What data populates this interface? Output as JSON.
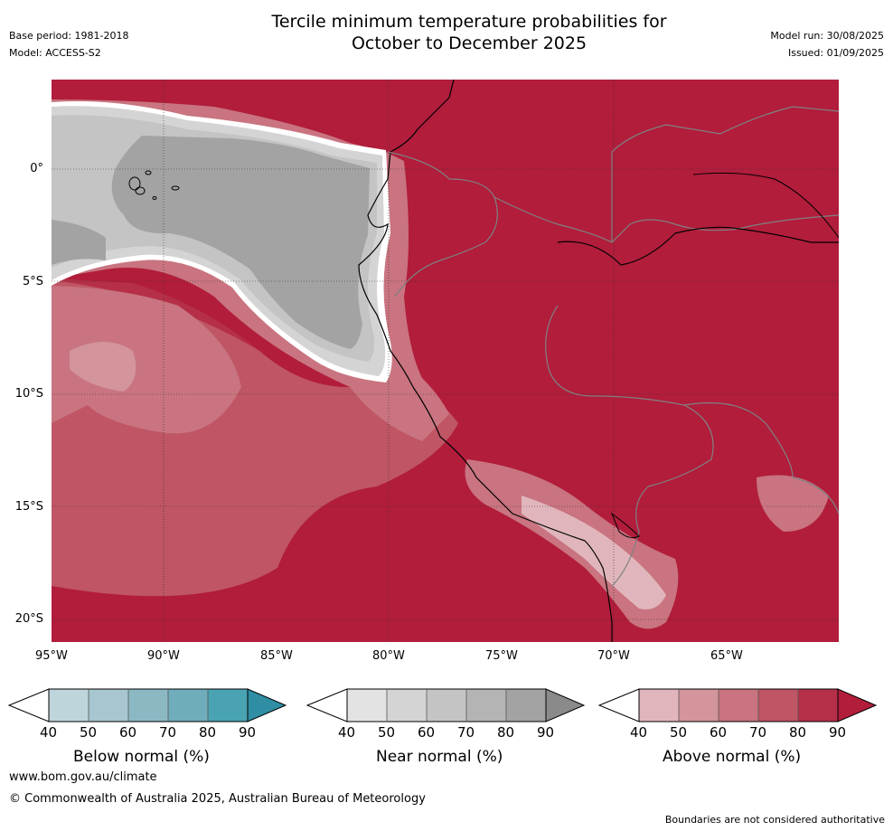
{
  "header": {
    "title_line1": "Tercile minimum temperature probabilities for",
    "title_line2": "October to December 2025",
    "base_period": "Base period: 1981-2018",
    "model": "Model: ACCESS-S2",
    "model_run": "Model run: 30/08/2025",
    "issued": "Issued: 01/09/2025"
  },
  "map": {
    "lat_ticks": [
      "0°",
      "5°S",
      "10°S",
      "15°S",
      "20°S"
    ],
    "lon_ticks": [
      "95°W",
      "90°W",
      "85°W",
      "80°W",
      "75°W",
      "70°W",
      "65°W"
    ],
    "gridlines": true
  },
  "legend": {
    "tick_labels": [
      "40",
      "50",
      "60",
      "70",
      "80",
      "90"
    ],
    "bars": [
      {
        "label": "Below normal (%)",
        "colors": [
          "#bfd5dc",
          "#a7c6cf",
          "#8cb8c4",
          "#6fadba",
          "#4aa3b3",
          "#2f8ea3"
        ]
      },
      {
        "label": "Near normal (%)",
        "colors": [
          "#e3e3e3",
          "#d4d4d4",
          "#c4c4c4",
          "#b4b4b4",
          "#a3a3a3",
          "#8a8a8a"
        ]
      },
      {
        "label": "Above normal (%)",
        "colors": [
          "#e0b6bc",
          "#d3949c",
          "#c97480",
          "#bf5565",
          "#b52f48",
          "#b11d3b"
        ]
      }
    ]
  },
  "footer": {
    "website": "www.bom.gov.au/climate",
    "copyright": "© Commonwealth of Australia 2025, Australian Bureau of Meteorology",
    "disclaimer": "Boundaries are not considered authoritative"
  }
}
